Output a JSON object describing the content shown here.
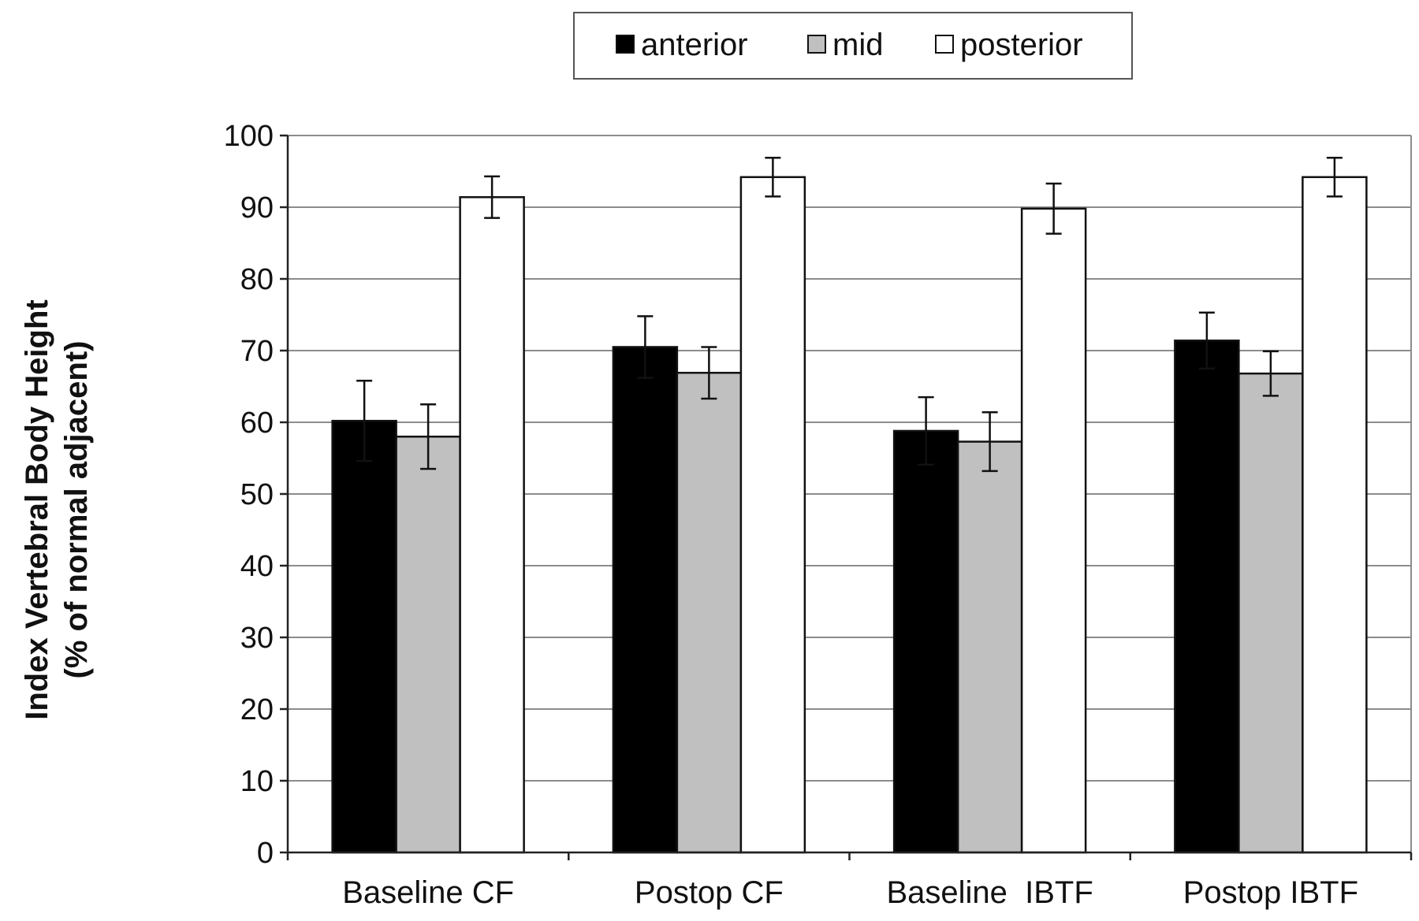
{
  "chart_data": {
    "type": "bar",
    "title": "",
    "xlabel": "",
    "ylabel": [
      "Index Vertebral Body Height",
      "(% of normal adjacent)"
    ],
    "ylim": [
      0,
      100
    ],
    "yticks": [
      0,
      10,
      20,
      30,
      40,
      50,
      60,
      70,
      80,
      90,
      100
    ],
    "grid": "horizontal",
    "legend_position": "top",
    "categories": [
      "Baseline CF",
      "Postop CF",
      "Baseline  IBTF",
      "Postop IBTF"
    ],
    "series": [
      {
        "name": "anterior",
        "color": "#000000",
        "values": [
          60.2,
          70.5,
          58.8,
          71.4
        ],
        "errors": [
          5.6,
          4.3,
          4.7,
          3.9
        ]
      },
      {
        "name": "mid",
        "color": "#c0c0c0",
        "values": [
          58.0,
          66.9,
          57.3,
          66.8
        ],
        "errors": [
          4.5,
          3.6,
          4.1,
          3.1
        ]
      },
      {
        "name": "posterior",
        "color": "#ffffff",
        "values": [
          91.4,
          94.2,
          89.8,
          94.2
        ],
        "errors": [
          2.9,
          2.7,
          3.5,
          2.7
        ]
      }
    ]
  }
}
